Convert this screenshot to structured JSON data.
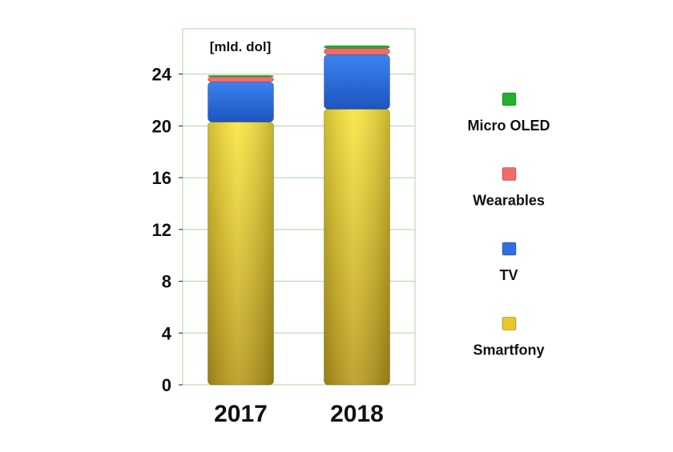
{
  "chart_data": {
    "type": "bar",
    "stacked": true,
    "unit_label": "[mld. dol]",
    "categories": [
      "2017",
      "2018"
    ],
    "series": [
      {
        "name": "Smartfony",
        "color": "#e8c72a",
        "values": [
          20.3,
          21.3
        ]
      },
      {
        "name": "TV",
        "color": "#2f6fe0",
        "values": [
          3.1,
          4.2
        ]
      },
      {
        "name": "Wearables",
        "color": "#f26a6a",
        "values": [
          0.4,
          0.5
        ]
      },
      {
        "name": "Micro OLED",
        "color": "#22b030",
        "values": [
          0.1,
          0.2
        ]
      }
    ],
    "ylim": [
      0,
      27.5
    ],
    "yticks": [
      0,
      4,
      8,
      12,
      16,
      20,
      24
    ],
    "grid": true,
    "legend": "right"
  }
}
